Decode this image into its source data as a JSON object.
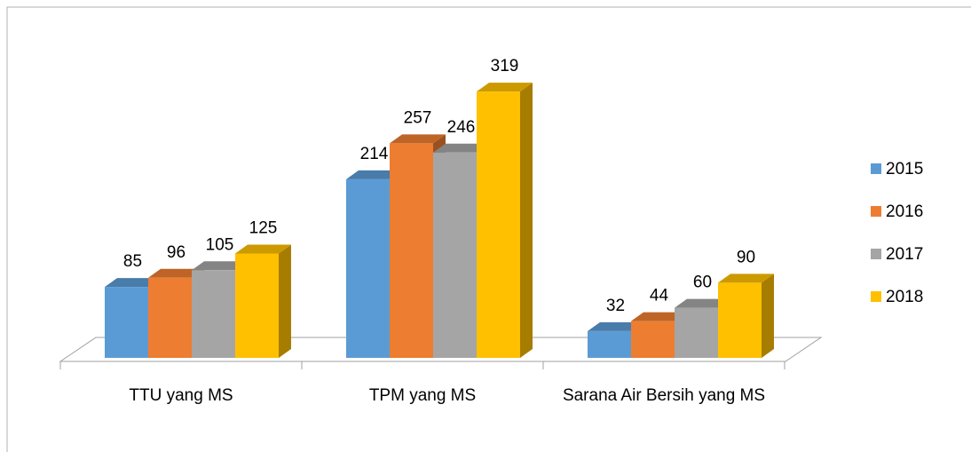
{
  "chart_data": {
    "type": "bar3d",
    "categories": [
      "TTU yang MS",
      "TPM yang MS",
      "Sarana Air Bersih yang MS"
    ],
    "series": [
      {
        "name": "2015",
        "color": "#5b9bd5",
        "values": [
          85,
          214,
          32
        ]
      },
      {
        "name": "2016",
        "color": "#ed7d31",
        "values": [
          96,
          257,
          44
        ]
      },
      {
        "name": "2017",
        "color": "#a5a5a5",
        "values": [
          105,
          246,
          60
        ]
      },
      {
        "name": "2018",
        "color": "#ffc000",
        "values": [
          125,
          319,
          90
        ]
      }
    ],
    "ylim": [
      0,
      350
    ],
    "legend": "right"
  }
}
